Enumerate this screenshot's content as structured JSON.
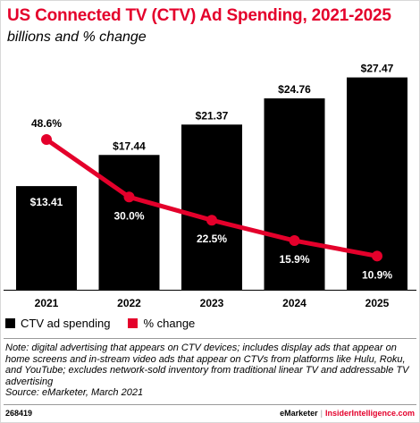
{
  "title": "US Connected TV (CTV) Ad Spending, 2021-2025",
  "subtitle": "billions and % change",
  "legend": [
    {
      "label": "CTV ad spending",
      "color": "#000000"
    },
    {
      "label": "% change",
      "color": "#e4002b"
    }
  ],
  "chart_data": {
    "type": "bar",
    "categories": [
      "2021",
      "2022",
      "2023",
      "2024",
      "2025"
    ],
    "series": [
      {
        "name": "CTV ad spending",
        "type": "bar",
        "values": [
          13.41,
          17.44,
          21.37,
          24.76,
          27.47
        ],
        "labels": [
          "$13.41",
          "$17.44",
          "$21.37",
          "$24.76",
          "$27.47"
        ],
        "color": "#000000"
      },
      {
        "name": "% change",
        "type": "line",
        "values": [
          48.6,
          30.0,
          22.5,
          15.9,
          10.9
        ],
        "labels": [
          "48.6%",
          "30.0%",
          "22.5%",
          "15.9%",
          "10.9%"
        ],
        "color": "#e4002b"
      }
    ],
    "bar_ylim": [
      0,
      28
    ],
    "line_ylim": [
      0,
      70
    ],
    "grid": false
  },
  "note": "Note: digital advertising that appears on CTV devices; includes display ads that appear on home screens and in-stream video ads that appear on CTVs from platforms like Hulu, Roku, and YouTube; excludes network-sold inventory from traditional linear TV and addressable TV advertising",
  "source": "Source: eMarketer, March 2021",
  "chart_id": "268419",
  "brand": {
    "left": "eMarketer",
    "separator": "|",
    "right": "InsiderIntelligence.com"
  }
}
